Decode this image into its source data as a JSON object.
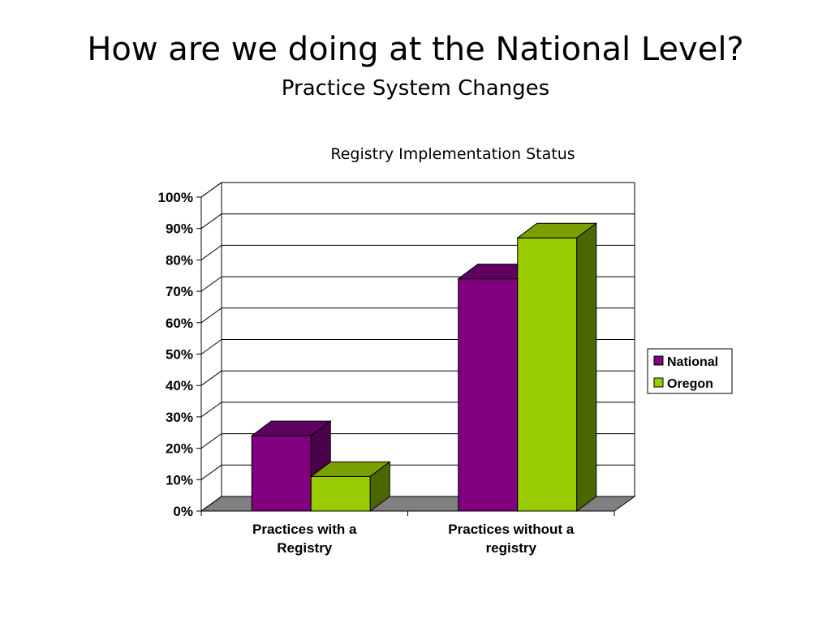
{
  "slide": {
    "title": "How are we doing at the National Level?",
    "subtitle": "Practice System Changes"
  },
  "chart_data": {
    "type": "bar",
    "style": "3d-clustered-column",
    "title": "Registry Implementation Status",
    "categories": [
      "Practices with a Registry",
      "Practices without a registry"
    ],
    "series": [
      {
        "name": "National",
        "values": [
          24,
          74
        ],
        "color": "#800080",
        "top_color": "#600060",
        "side_color": "#4a004a"
      },
      {
        "name": "Oregon",
        "values": [
          11,
          87
        ],
        "color": "#99cc00",
        "top_color": "#7a9f00",
        "side_color": "#4d6600"
      }
    ],
    "ylim": [
      0,
      100
    ],
    "yticks": [
      "0%",
      "10%",
      "20%",
      "30%",
      "40%",
      "50%",
      "60%",
      "70%",
      "80%",
      "90%",
      "100%"
    ],
    "grid": true,
    "floor_color": "#808080",
    "legend": "right"
  }
}
